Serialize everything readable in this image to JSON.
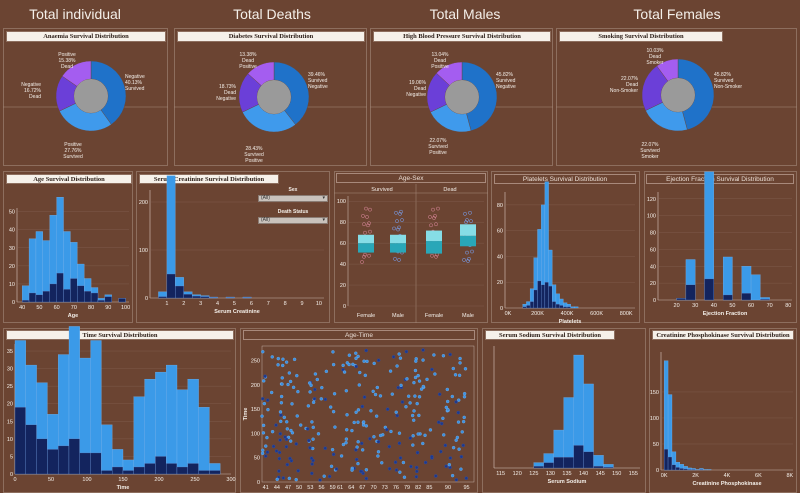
{
  "kpis": {
    "total_individual": "Total individual",
    "total_deaths": "Total Deaths",
    "total_males": "Total Males",
    "total_females": "Total Females"
  },
  "titles": {
    "anaemia": "Anaemia Survival Distribution",
    "diabetes": "Diabetes Survival Distribution",
    "bp": "High Blood Pressure Survival Distribution",
    "smoking": "Smoking  Survival Distribution",
    "age": "Age Survival Distribution",
    "creat": "Serum Creatinine Survival Distribution",
    "agesex": "Age-Sex",
    "platelets": "Platelets Survival Distribution",
    "ef": "Ejection Fraction Survival Distribution",
    "time": "Time Survival Distribution",
    "agetime": "Age-Time",
    "sodium": "Serum Sodium Survival Distribution",
    "cpk": "Creatinine Phosphokinase Survival Distribution"
  },
  "filters": {
    "sex_label": "Sex",
    "sex_value": "(All)",
    "death_label": "Death Status",
    "death_value": "(All)"
  },
  "colors": {
    "bg": "#6b4432",
    "survived": "#3b9ae8",
    "dead": "#13245e",
    "donut1": "#1f72c9",
    "donut2": "#3f9aec",
    "donut3": "#6b3fd8",
    "donut4": "#a45df0",
    "hole": "#9a9a9a",
    "box_teal": "#29a7b8",
    "box_light": "#86dde6"
  },
  "chart_data": [
    {
      "type": "pie",
      "id": "anaemia",
      "title": "Anaemia Survival Distribution",
      "slices": [
        {
          "label": [
            "Negative",
            "40.13%",
            "Survived"
          ],
          "value": 40.13
        },
        {
          "label": [
            "Positive",
            "27.76%",
            "Survived"
          ],
          "value": 27.76
        },
        {
          "label": [
            "Negative",
            "16.72%",
            "Dead"
          ],
          "value": 16.72
        },
        {
          "label": [
            "Positive",
            "15.38%",
            "Dead"
          ],
          "value": 15.38
        }
      ]
    },
    {
      "type": "pie",
      "id": "diabetes",
      "title": "Diabetes Survival Distribution",
      "slices": [
        {
          "label": [
            "39.46%",
            "Survived",
            "Negative"
          ],
          "value": 39.46
        },
        {
          "label": [
            "28.43%",
            "Survived",
            "Positive"
          ],
          "value": 28.43
        },
        {
          "label": [
            "18.73%",
            "Dead",
            "Negative"
          ],
          "value": 18.73
        },
        {
          "label": [
            "13.38%",
            "Dead",
            "Positive"
          ],
          "value": 13.38
        }
      ]
    },
    {
      "type": "pie",
      "id": "bp",
      "title": "High Blood Pressure Survival Distribution",
      "slices": [
        {
          "label": [
            "45.82%",
            "Survived",
            "Negative"
          ],
          "value": 45.82
        },
        {
          "label": [
            "22.07%",
            "Survived",
            "Positive"
          ],
          "value": 22.07
        },
        {
          "label": [
            "19.06%",
            "Dead",
            "Negative"
          ],
          "value": 19.06
        },
        {
          "label": [
            "13.04%",
            "Dead",
            "Positive"
          ],
          "value": 13.04
        }
      ]
    },
    {
      "type": "pie",
      "id": "smoking",
      "title": "Smoking  Survival Distribution",
      "slices": [
        {
          "label": [
            "45.82%",
            "Survived",
            "Non-Smoker"
          ],
          "value": 45.82
        },
        {
          "label": [
            "22.07%",
            "Survived",
            "Smoker"
          ],
          "value": 22.07
        },
        {
          "label": [
            "22.07%",
            "Dead",
            "Non-Smoker"
          ],
          "value": 22.07
        },
        {
          "label": [
            "10.03%",
            "Dead",
            "Smoker"
          ],
          "value": 10.03
        }
      ]
    },
    {
      "type": "bar",
      "id": "age",
      "title": "Age Survival Distribution",
      "xlabel": "Age",
      "xticks": [
        40,
        50,
        60,
        70,
        80,
        90,
        100
      ],
      "yticks": [
        0,
        10,
        20,
        30,
        40,
        50
      ],
      "xlim": [
        37,
        102
      ],
      "ylim": [
        0,
        52
      ],
      "bins": [
        [
          40,
          44
        ],
        [
          44,
          48
        ],
        [
          48,
          52
        ],
        [
          52,
          56
        ],
        [
          56,
          60
        ],
        [
          60,
          64
        ],
        [
          64,
          68
        ],
        [
          68,
          72
        ],
        [
          72,
          76
        ],
        [
          76,
          80
        ],
        [
          80,
          84
        ],
        [
          84,
          88
        ],
        [
          88,
          92
        ],
        [
          92,
          96
        ],
        [
          96,
          100
        ]
      ],
      "survived": [
        8,
        30,
        35,
        28,
        38,
        42,
        32,
        20,
        12,
        7,
        3,
        1,
        1,
        0,
        0
      ],
      "dead": [
        1,
        5,
        4,
        6,
        10,
        16,
        7,
        13,
        9,
        6,
        5,
        1,
        3,
        0,
        2
      ]
    },
    {
      "type": "bar",
      "id": "creat",
      "title": "Serum Creatinine Survival Distribution",
      "xlabel": "Serum Creatinine",
      "xticks": [
        1,
        2,
        3,
        4,
        5,
        6,
        7,
        8,
        9,
        10
      ],
      "yticks": [
        0,
        100,
        200
      ],
      "xlim": [
        0,
        10.3
      ],
      "ylim": [
        0,
        225
      ],
      "bins": [
        [
          0.5,
          1
        ],
        [
          1,
          1.5
        ],
        [
          1.5,
          2
        ],
        [
          2,
          2.5
        ],
        [
          2.5,
          3
        ],
        [
          3,
          3.5
        ],
        [
          3.5,
          4
        ],
        [
          4,
          4.5
        ],
        [
          4.5,
          5
        ],
        [
          5,
          5.5
        ],
        [
          5.5,
          6
        ]
      ],
      "survived": [
        10,
        205,
        18,
        5,
        3,
        2,
        1,
        0,
        1,
        0,
        1
      ],
      "dead": [
        3,
        50,
        25,
        8,
        4,
        3,
        1,
        0,
        1,
        0,
        1
      ]
    },
    {
      "type": "box",
      "id": "agesex",
      "title": "Age-Sex",
      "columns": [
        "Survived",
        "Dead"
      ],
      "categories": [
        "Female",
        "Male",
        "Female",
        "Male"
      ],
      "yticks": [
        0,
        20,
        40,
        60,
        80,
        100
      ],
      "ylim": [
        0,
        105
      ],
      "boxes": [
        {
          "q1": 51,
          "med": 60,
          "q3": 68
        },
        {
          "q1": 51,
          "med": 60,
          "q3": 68
        },
        {
          "q1": 50,
          "med": 62,
          "q3": 72
        },
        {
          "q1": 57,
          "med": 67,
          "q3": 78
        }
      ]
    },
    {
      "type": "bar",
      "id": "platelets",
      "title": "Platelets Survival Distribution",
      "xlabel": "Platelets",
      "xticks": [
        "0K",
        "200K",
        "400K",
        "600K",
        "800K"
      ],
      "xvals": [
        0,
        200,
        400,
        600,
        800
      ],
      "yticks": [
        0,
        20,
        40,
        60,
        80
      ],
      "xlim": [
        -20,
        860
      ],
      "ylim": [
        0,
        90
      ],
      "bins": [
        [
          100,
          125
        ],
        [
          125,
          150
        ],
        [
          150,
          175
        ],
        [
          175,
          200
        ],
        [
          200,
          225
        ],
        [
          225,
          250
        ],
        [
          250,
          275
        ],
        [
          275,
          300
        ],
        [
          300,
          325
        ],
        [
          325,
          350
        ],
        [
          350,
          375
        ],
        [
          375,
          400
        ],
        [
          400,
          425
        ],
        [
          425,
          450
        ],
        [
          450,
          475
        ]
      ],
      "survived": [
        2,
        3,
        10,
        25,
        40,
        62,
        78,
        28,
        13,
        8,
        5,
        3,
        2,
        1,
        1
      ],
      "dead": [
        1,
        2,
        5,
        14,
        21,
        18,
        20,
        17,
        5,
        3,
        2,
        1,
        1,
        0,
        0
      ]
    },
    {
      "type": "bar",
      "id": "ef",
      "title": "Ejection Fraction Survival Distribution",
      "xlabel": "Ejection Fraction",
      "xticks": [
        20,
        30,
        40,
        50,
        60,
        70,
        80
      ],
      "yticks": [
        0,
        20,
        40,
        60,
        80,
        100,
        120
      ],
      "xlim": [
        10,
        82
      ],
      "ylim": [
        0,
        128
      ],
      "bins": [
        [
          20,
          25
        ],
        [
          25,
          30
        ],
        [
          30,
          35
        ],
        [
          35,
          40
        ],
        [
          40,
          45
        ],
        [
          45,
          50
        ],
        [
          50,
          55
        ],
        [
          55,
          60
        ],
        [
          60,
          65
        ],
        [
          65,
          70
        ]
      ],
      "survived": [
        0,
        30,
        0,
        127,
        0,
        45,
        0,
        32,
        30,
        2
      ],
      "dead": [
        2,
        18,
        0,
        25,
        0,
        6,
        0,
        8,
        0,
        1
      ]
    },
    {
      "type": "bar",
      "id": "time",
      "title": "Time Survival Distribution",
      "xlabel": "Time",
      "xticks": [
        0,
        50,
        100,
        150,
        200,
        250,
        300
      ],
      "yticks": [
        0,
        5,
        10,
        15,
        20,
        25,
        30,
        35
      ],
      "xlim": [
        0,
        300
      ],
      "ylim": [
        0,
        37
      ],
      "bins": [
        [
          0,
          15
        ],
        [
          15,
          30
        ],
        [
          30,
          45
        ],
        [
          45,
          60
        ],
        [
          60,
          75
        ],
        [
          75,
          90
        ],
        [
          90,
          105
        ],
        [
          105,
          120
        ],
        [
          120,
          135
        ],
        [
          135,
          150
        ],
        [
          150,
          165
        ],
        [
          165,
          180
        ],
        [
          180,
          195
        ],
        [
          195,
          210
        ],
        [
          210,
          225
        ],
        [
          225,
          240
        ],
        [
          240,
          255
        ],
        [
          255,
          270
        ],
        [
          270,
          285
        ]
      ],
      "survived": [
        19,
        17,
        16,
        10,
        26,
        32,
        27,
        32,
        13,
        5,
        3,
        20,
        24,
        24,
        28,
        22,
        24,
        18,
        2
      ],
      "dead": [
        19,
        14,
        10,
        7,
        8,
        10,
        6,
        6,
        1,
        2,
        1,
        2,
        3,
        5,
        3,
        2,
        3,
        1,
        1
      ]
    },
    {
      "type": "scatter",
      "id": "agetime",
      "title": "Age-Time",
      "xlabel": "",
      "ylabel": "Time",
      "xticks": [
        41,
        44,
        47,
        50,
        53,
        56,
        59,
        61,
        64,
        67,
        70,
        73,
        76,
        79,
        82,
        85,
        90,
        95
      ],
      "yticks": [
        0,
        50,
        100,
        150,
        200,
        250
      ],
      "xlim": [
        40,
        97
      ],
      "ylim": [
        0,
        280
      ]
    },
    {
      "type": "bar",
      "id": "sodium",
      "title": "Serum Sodium Survival Distribution",
      "xlabel": "Serum Sodium",
      "xticks": [
        115,
        120,
        125,
        130,
        135,
        140,
        145,
        150,
        155
      ],
      "yticks": [],
      "xlim": [
        113,
        157
      ],
      "bins": [
        [
          125,
          128
        ],
        [
          128,
          131
        ],
        [
          131,
          134
        ],
        [
          134,
          137
        ],
        [
          137,
          140
        ],
        [
          140,
          143
        ],
        [
          143,
          146
        ],
        [
          146,
          149
        ]
      ],
      "survived": [
        4,
        10,
        30,
        66,
        100,
        75,
        12,
        3
      ],
      "dead": [
        2,
        6,
        12,
        12,
        25,
        18,
        2,
        1
      ]
    },
    {
      "type": "bar",
      "id": "cpk",
      "title": "Creatinine Phosphokinase Survival Distribution",
      "xlabel": "Creatinine Phosphokinase",
      "xticks": [
        "0K",
        "2K",
        "4K",
        "6K",
        "8K"
      ],
      "xvals": [
        0,
        2000,
        4000,
        6000,
        8000
      ],
      "yticks": [
        0,
        50,
        100,
        150
      ],
      "xlim": [
        -200,
        8200
      ],
      "bins": [
        [
          0,
          250
        ],
        [
          250,
          500
        ],
        [
          500,
          750
        ],
        [
          750,
          1000
        ],
        [
          1000,
          1250
        ],
        [
          1250,
          1500
        ],
        [
          1500,
          1750
        ],
        [
          1750,
          2000
        ],
        [
          2000,
          2250
        ],
        [
          2250,
          2500
        ],
        [
          2500,
          2750
        ],
        [
          2750,
          3000
        ]
      ],
      "survived": [
        170,
        120,
        25,
        10,
        8,
        5,
        3,
        2,
        1,
        2,
        1,
        1
      ],
      "dead": [
        40,
        25,
        10,
        5,
        3,
        2,
        1,
        1,
        0,
        1,
        0,
        0
      ]
    }
  ]
}
